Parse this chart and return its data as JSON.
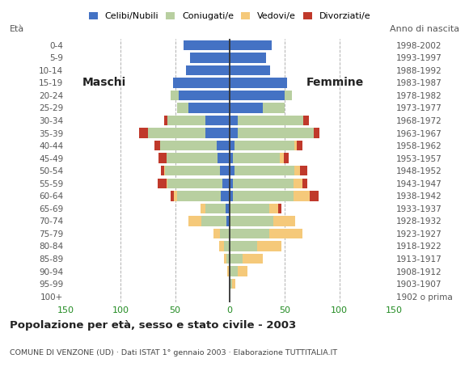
{
  "age_groups": [
    "100+",
    "95-99",
    "90-94",
    "85-89",
    "80-84",
    "75-79",
    "70-74",
    "65-69",
    "60-64",
    "55-59",
    "50-54",
    "45-49",
    "40-44",
    "35-39",
    "30-34",
    "25-29",
    "20-24",
    "15-19",
    "10-14",
    "5-9",
    "0-4"
  ],
  "birth_years": [
    "1902 o prima",
    "1903-1907",
    "1908-1912",
    "1913-1917",
    "1918-1922",
    "1923-1927",
    "1928-1932",
    "1933-1937",
    "1938-1942",
    "1943-1947",
    "1948-1952",
    "1953-1957",
    "1958-1962",
    "1963-1967",
    "1968-1972",
    "1973-1977",
    "1978-1982",
    "1983-1987",
    "1988-1992",
    "1993-1997",
    "1998-2002"
  ],
  "males": {
    "celibe": [
      0,
      0,
      0,
      0,
      0,
      0,
      3,
      4,
      8,
      7,
      9,
      11,
      12,
      22,
      22,
      38,
      47,
      52,
      40,
      36,
      42
    ],
    "coniugato": [
      0,
      0,
      1,
      3,
      5,
      9,
      23,
      18,
      40,
      50,
      50,
      47,
      52,
      53,
      35,
      10,
      7,
      0,
      0,
      0,
      0
    ],
    "vedovo": [
      0,
      0,
      1,
      2,
      5,
      6,
      12,
      5,
      3,
      1,
      1,
      0,
      0,
      0,
      0,
      0,
      0,
      0,
      0,
      0,
      0
    ],
    "divorziato": [
      0,
      0,
      0,
      0,
      0,
      0,
      0,
      0,
      3,
      8,
      3,
      7,
      5,
      8,
      3,
      0,
      0,
      0,
      0,
      0,
      0
    ]
  },
  "females": {
    "celibe": [
      0,
      0,
      0,
      0,
      0,
      0,
      0,
      0,
      3,
      3,
      4,
      3,
      4,
      7,
      7,
      30,
      50,
      52,
      37,
      33,
      38
    ],
    "coniugato": [
      0,
      2,
      7,
      12,
      25,
      36,
      40,
      36,
      55,
      55,
      55,
      43,
      55,
      70,
      60,
      20,
      7,
      0,
      0,
      0,
      0
    ],
    "vedovo": [
      0,
      3,
      9,
      18,
      22,
      30,
      20,
      8,
      15,
      8,
      5,
      3,
      2,
      0,
      0,
      0,
      0,
      0,
      0,
      0,
      0
    ],
    "divorziato": [
      0,
      0,
      0,
      0,
      0,
      0,
      0,
      3,
      8,
      5,
      7,
      5,
      5,
      5,
      5,
      0,
      0,
      0,
      0,
      0,
      0
    ]
  },
  "colors": {
    "celibe": "#4472C4",
    "coniugato": "#b8cfa0",
    "vedovo": "#f5c97a",
    "divorziato": "#C0392B"
  },
  "xlim": 150,
  "title": "Popolazione per età, sesso e stato civile - 2003",
  "subtitle": "COMUNE DI VENZONE (UD) · Dati ISTAT 1° gennaio 2003 · Elaborazione TUTTITALIA.IT",
  "label_maschi": "Maschi",
  "label_femmine": "Femmine",
  "eta_label": "Età",
  "anno_label": "Anno di nascita",
  "legend_labels": [
    "Celibi/Nubili",
    "Coniugati/e",
    "Vedovi/e",
    "Divorziati/e"
  ],
  "bg_color": "#ffffff",
  "grid_color": "#aaaaaa"
}
